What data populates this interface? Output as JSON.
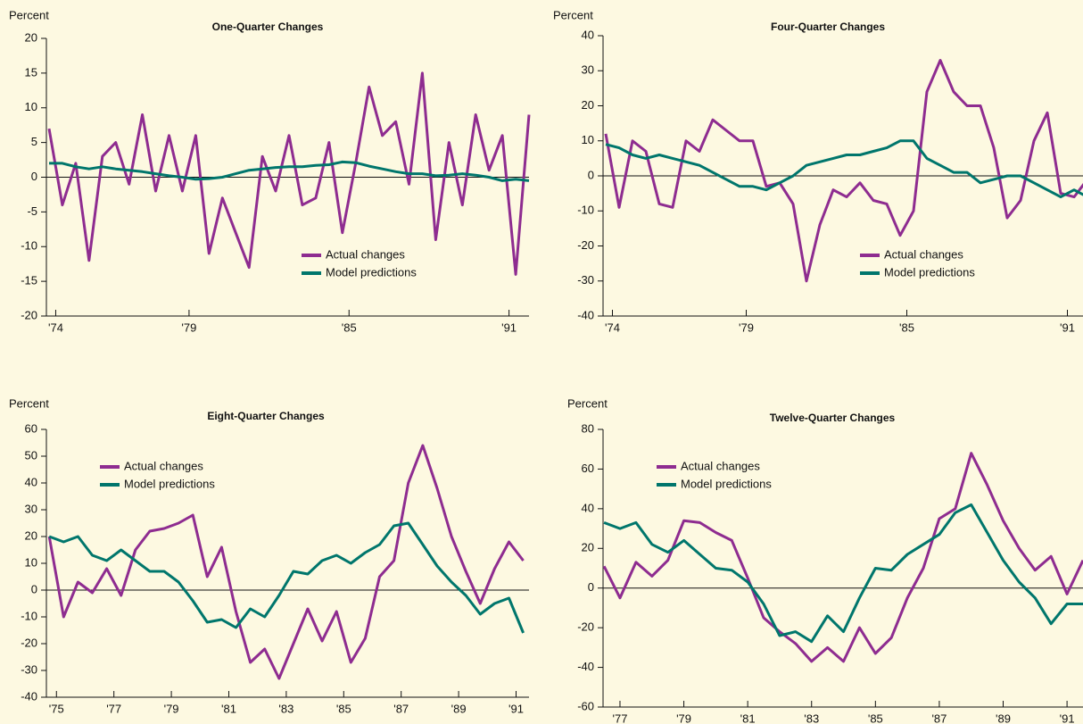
{
  "chart_data": [
    {
      "type": "line",
      "title": "One-Quarter Changes",
      "y_label": "Percent",
      "x": [
        1973.75,
        1974.25,
        1974.75,
        1975.25,
        1975.75,
        1976.25,
        1976.75,
        1977.25,
        1977.75,
        1978.25,
        1978.75,
        1979.25,
        1979.75,
        1980.25,
        1980.75,
        1981.25,
        1981.75,
        1982.25,
        1982.75,
        1983.25,
        1983.75,
        1984.25,
        1984.75,
        1985.25,
        1985.75,
        1986.25,
        1986.75,
        1987.25,
        1987.75,
        1988.25,
        1988.75,
        1989.25,
        1989.75,
        1990.25,
        1990.75,
        1991.25,
        1991.75
      ],
      "series": [
        {
          "name": "Actual changes",
          "color": "#8e2c90",
          "values": [
            7,
            -4,
            2,
            -12,
            3,
            5,
            -1,
            9,
            -2,
            6,
            -2,
            6,
            -11,
            -3,
            -8,
            -13,
            3,
            -2,
            6,
            -4,
            -3,
            5,
            -8,
            2,
            13,
            6,
            8,
            -1,
            15,
            -9,
            5,
            -4,
            9,
            1,
            6,
            -14,
            9
          ]
        },
        {
          "name": "Model predictions",
          "color": "#00766c",
          "values": [
            2,
            2,
            1.5,
            1.2,
            1.5,
            1.2,
            1,
            0.8,
            0.5,
            0.2,
            0,
            -0.3,
            -0.2,
            0,
            0.5,
            1,
            1.2,
            1.4,
            1.5,
            1.5,
            1.7,
            1.8,
            2.2,
            2.1,
            1.6,
            1.2,
            0.8,
            0.5,
            0.5,
            0.2,
            0.3,
            0.5,
            0.3,
            0,
            -0.5,
            -0.3,
            -0.5
          ]
        }
      ],
      "xlim": [
        1973.65,
        1991.75
      ],
      "ylim": [
        -20,
        20
      ],
      "xticks": [
        {
          "value": 1974,
          "label": "'74"
        },
        {
          "value": 1979,
          "label": "'79"
        },
        {
          "value": 1985,
          "label": "'85"
        },
        {
          "value": 1991,
          "label": "'91"
        }
      ],
      "yticks": [
        -20,
        -15,
        -10,
        -5,
        0,
        5,
        10,
        15,
        20
      ],
      "legend": "lower right"
    },
    {
      "type": "line",
      "title": "Four-Quarter Changes",
      "y_label": "Percent",
      "x": [
        1973.75,
        1974.25,
        1974.75,
        1975.25,
        1975.75,
        1976.25,
        1976.75,
        1977.25,
        1977.75,
        1978.25,
        1978.75,
        1979.25,
        1979.75,
        1980.25,
        1980.75,
        1981.25,
        1981.75,
        1982.25,
        1982.75,
        1983.25,
        1983.75,
        1984.25,
        1984.75,
        1985.25,
        1985.75,
        1986.25,
        1986.75,
        1987.25,
        1987.75,
        1988.25,
        1988.75,
        1989.25,
        1989.75,
        1990.25,
        1990.75,
        1991.25,
        1991.75
      ],
      "series": [
        {
          "name": "Actual changes",
          "color": "#8e2c90",
          "values": [
            12,
            -9,
            10,
            7,
            -8,
            -9,
            10,
            7,
            16,
            13,
            10,
            10,
            -3,
            -2,
            -8,
            -30,
            -14,
            -4,
            -6,
            -2,
            -7,
            -8,
            -17,
            -10,
            24,
            33,
            24,
            20,
            20,
            8,
            -12,
            -7,
            10,
            18,
            -5,
            -6,
            -1
          ]
        },
        {
          "name": "Model predictions",
          "color": "#00766c",
          "values": [
            9,
            8,
            6,
            5,
            6,
            5,
            4,
            3,
            1,
            -1,
            -3,
            -3,
            -4,
            -2,
            0,
            3,
            4,
            5,
            6,
            6,
            7,
            8,
            10,
            10,
            5,
            3,
            1,
            1,
            -2,
            -1,
            0,
            0,
            -2,
            -4,
            -6,
            -4,
            -6
          ]
        }
      ],
      "xlim": [
        1973.65,
        1991.75
      ],
      "ylim": [
        -40,
        40
      ],
      "xticks": [
        {
          "value": 1974,
          "label": "'74"
        },
        {
          "value": 1979,
          "label": "'79"
        },
        {
          "value": 1985,
          "label": "'85"
        },
        {
          "value": 1991,
          "label": "'91"
        }
      ],
      "yticks": [
        -40,
        -30,
        -20,
        -10,
        0,
        10,
        20,
        30,
        40
      ],
      "legend": "lower right"
    },
    {
      "type": "line",
      "title": "Eight-Quarter Changes",
      "y_label": "Percent",
      "x": [
        1974.75,
        1975.25,
        1975.75,
        1976.25,
        1976.75,
        1977.25,
        1977.75,
        1978.25,
        1978.75,
        1979.25,
        1979.75,
        1980.25,
        1980.75,
        1981.25,
        1981.75,
        1982.25,
        1982.75,
        1983.25,
        1983.75,
        1984.25,
        1984.75,
        1985.25,
        1985.75,
        1986.25,
        1986.75,
        1987.25,
        1987.75,
        1988.25,
        1988.75,
        1989.25,
        1989.75,
        1990.25,
        1990.75,
        1991.25
      ],
      "series": [
        {
          "name": "Actual changes",
          "color": "#8e2c90",
          "values": [
            20,
            -10,
            3,
            -1,
            8,
            -2,
            15,
            22,
            23,
            25,
            28,
            5,
            16,
            -8,
            -27,
            -22,
            -33,
            -20,
            -7,
            -19,
            -8,
            -27,
            -18,
            5,
            11,
            40,
            54,
            38,
            20,
            7,
            -5,
            8,
            18,
            11
          ]
        },
        {
          "name": "Model predictions",
          "color": "#00766c",
          "values": [
            20,
            18,
            20,
            13,
            11,
            15,
            11,
            7,
            7,
            3,
            -4,
            -12,
            -11,
            -14,
            -7,
            -10,
            -2,
            7,
            6,
            11,
            13,
            10,
            14,
            17,
            24,
            25,
            17,
            9,
            3,
            -2,
            -9,
            -5,
            -3,
            -16
          ]
        }
      ],
      "xlim": [
        1974.65,
        1991.45
      ],
      "ylim": [
        -40,
        60
      ],
      "xticks": [
        {
          "value": 1975,
          "label": "'75"
        },
        {
          "value": 1977,
          "label": "'77"
        },
        {
          "value": 1979,
          "label": "'79"
        },
        {
          "value": 1981,
          "label": "'81"
        },
        {
          "value": 1983,
          "label": "'83"
        },
        {
          "value": 1985,
          "label": "'85"
        },
        {
          "value": 1987,
          "label": "'87"
        },
        {
          "value": 1989,
          "label": "'89"
        },
        {
          "value": 1991,
          "label": "'91"
        }
      ],
      "yticks": [
        -40,
        -30,
        -20,
        -10,
        0,
        10,
        20,
        30,
        40,
        50,
        60
      ],
      "legend": "upper left"
    },
    {
      "type": "line",
      "title": "Twelve-Quarter Changes",
      "y_label": "Percent",
      "x": [
        1976.5,
        1977,
        1977.5,
        1978,
        1978.5,
        1979,
        1979.5,
        1980,
        1980.5,
        1981,
        1981.5,
        1982,
        1982.5,
        1983,
        1983.5,
        1984,
        1984.5,
        1985,
        1985.5,
        1986,
        1986.5,
        1987,
        1987.5,
        1988,
        1988.5,
        1989,
        1989.5,
        1990,
        1990.5,
        1991,
        1991.5
      ],
      "series": [
        {
          "name": "Actual changes",
          "color": "#8e2c90",
          "values": [
            11,
            -5,
            13,
            6,
            14,
            34,
            33,
            28,
            24,
            5,
            -15,
            -22,
            -28,
            -37,
            -30,
            -37,
            -20,
            -33,
            -25,
            -5,
            10,
            35,
            40,
            68,
            52,
            34,
            20,
            9,
            16,
            -3,
            14
          ]
        },
        {
          "name": "Model predictions",
          "color": "#00766c",
          "values": [
            33,
            30,
            33,
            22,
            18,
            24,
            17,
            10,
            9,
            3,
            -8,
            -24,
            -22,
            -27,
            -14,
            -22,
            -5,
            10,
            9,
            17,
            22,
            27,
            38,
            42,
            28,
            14,
            3,
            -5,
            -18,
            -8,
            -8
          ]
        }
      ],
      "xlim": [
        1976.47,
        1991.5
      ],
      "ylim": [
        -60,
        80
      ],
      "xticks": [
        {
          "value": 1977,
          "label": "'77"
        },
        {
          "value": 1979,
          "label": "'79"
        },
        {
          "value": 1981,
          "label": "'81"
        },
        {
          "value": 1983,
          "label": "'83"
        },
        {
          "value": 1985,
          "label": "'85"
        },
        {
          "value": 1987,
          "label": "'87"
        },
        {
          "value": 1989,
          "label": "'89"
        },
        {
          "value": 1991,
          "label": "'91"
        }
      ],
      "yticks": [
        -60,
        -40,
        -20,
        0,
        20,
        40,
        60,
        80
      ],
      "legend": "upper left"
    }
  ]
}
